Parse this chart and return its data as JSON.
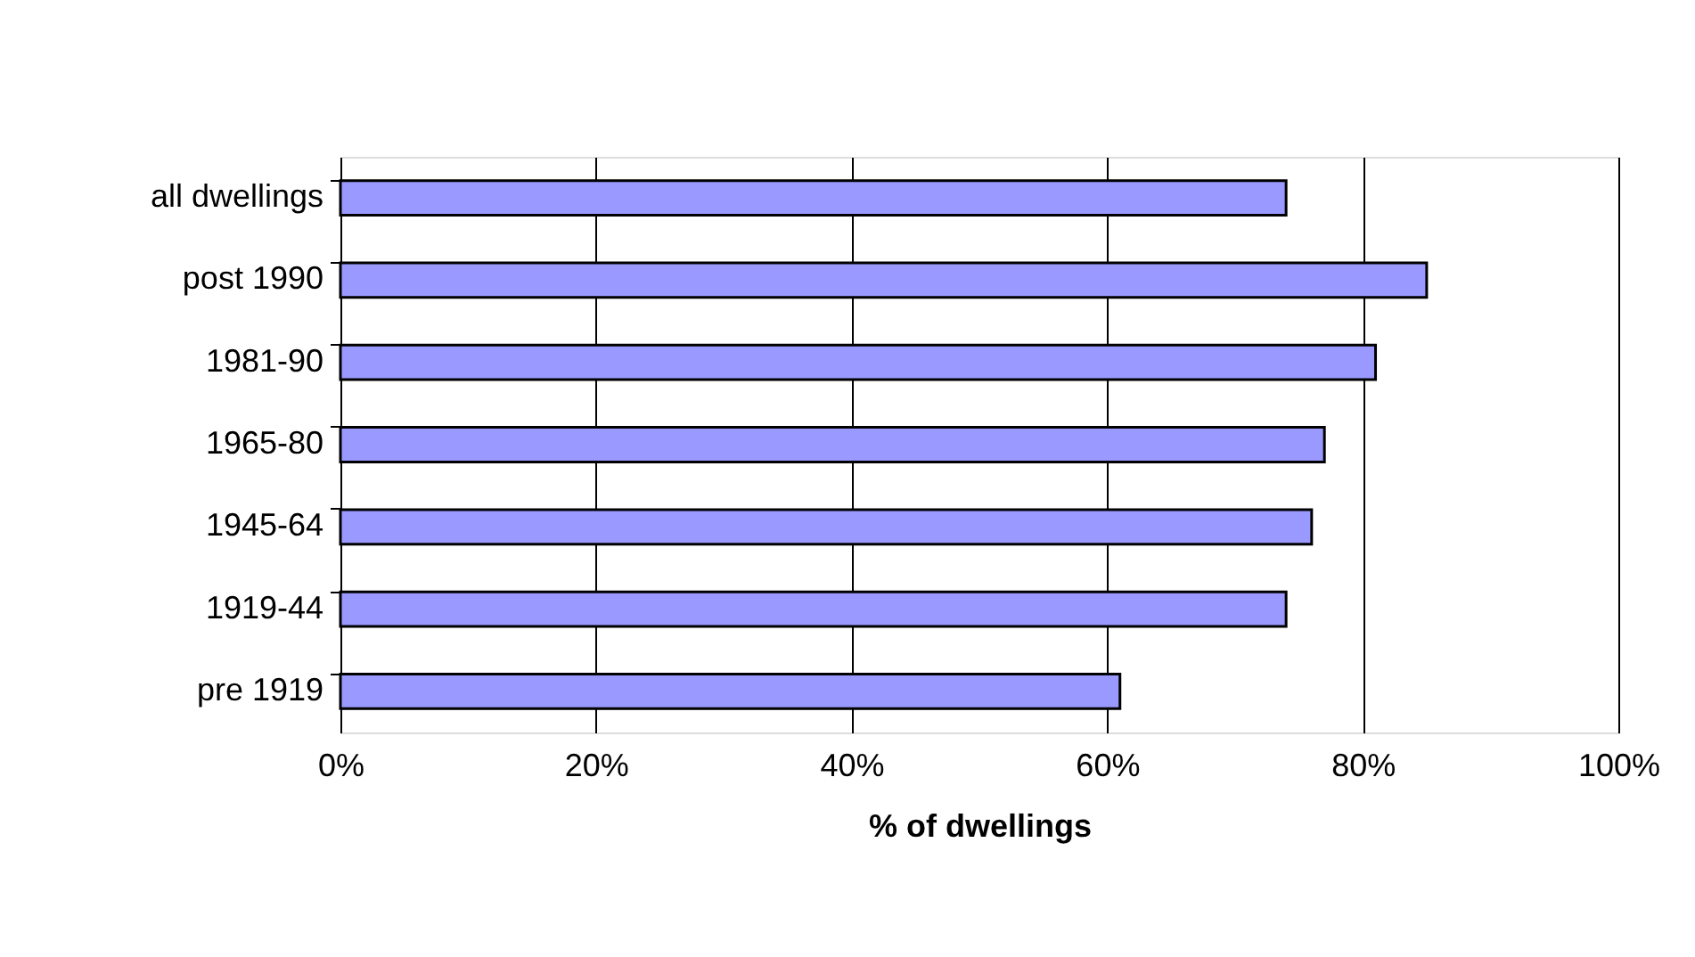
{
  "chart_data": {
    "type": "bar",
    "orientation": "horizontal",
    "xlabel": "% of dwellings",
    "categories": [
      "all dwellings",
      "post 1990",
      "1981-90",
      "1965-80",
      "1945-64",
      "1919-44",
      "pre 1919"
    ],
    "values": [
      74,
      85,
      81,
      77,
      76,
      74,
      61
    ],
    "color": "#9999ff",
    "xlim": [
      0,
      100
    ],
    "xticks": [
      {
        "value": 0,
        "label": "0%"
      },
      {
        "value": 20,
        "label": "20%"
      },
      {
        "value": 40,
        "label": "40%"
      },
      {
        "value": 60,
        "label": "60%"
      },
      {
        "value": 80,
        "label": "80%"
      },
      {
        "value": 100,
        "label": "100%"
      }
    ],
    "grid": "x"
  }
}
